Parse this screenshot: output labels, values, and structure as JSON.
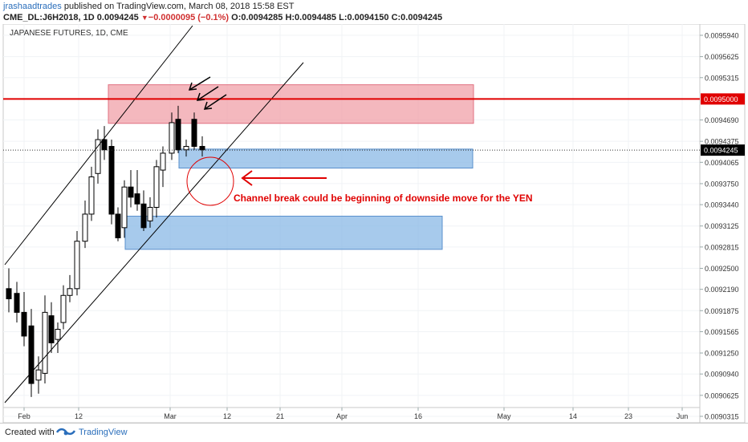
{
  "header": {
    "author": "jrashaadtrades",
    "published": "published on TradingView.com, March 08, 2018 15:58 EST",
    "symbol": "CME_DL:J6H2018, 1D",
    "last": "0.0094245",
    "change": "−0.0000095 (−0.1%)",
    "o_label": "O:",
    "o_val": "0.0094285",
    "h_label": "H:",
    "h_val": "0.0094485",
    "l_label": "L:",
    "l_val": "0.0094150",
    "c_label": "C:",
    "c_val": "0.0094245"
  },
  "footer": {
    "created": "Created with",
    "brand": "TradingView"
  },
  "colors": {
    "up": "#ffffff",
    "down": "#000000",
    "resistance": "#e00000",
    "red_zone": "#f0a0a8",
    "blue_zone": "#8ab8e6",
    "annotation": "#e00000"
  },
  "chart_data": {
    "type": "candlestick",
    "title": "JAPANESE FUTURES, 1D, CME",
    "y_ticks": [
      "0.0095940",
      "0.0095625",
      "0.0095315",
      "0.0095000",
      "0.0094690",
      "0.0094375",
      "0.0094245",
      "0.0094065",
      "0.0093750",
      "0.0093440",
      "0.0093125",
      "0.0092815",
      "0.0092500",
      "0.0092190",
      "0.0091875",
      "0.0091565",
      "0.0091250",
      "0.0090940",
      "0.0090625",
      "0.0090315"
    ],
    "x_ticks": [
      "Feb",
      "12",
      "Mar",
      "12",
      "21",
      "Apr",
      "16",
      "May",
      "14",
      "23",
      "Jun"
    ],
    "ylim": [
      0.00901,
      0.009624
    ],
    "resistance_level": "0.0095000",
    "last_price_label": "0.0094245",
    "annotation": "Channel break could be beginning of downside move for the YEN",
    "candles": [
      {
        "o": 0.00922,
        "h": 0.00925,
        "l": 0.009185,
        "c": 0.009205
      },
      {
        "o": 0.009213,
        "h": 0.00923,
        "l": 0.00917,
        "c": 0.009185
      },
      {
        "o": 0.009185,
        "h": 0.009215,
        "l": 0.009135,
        "c": 0.00915
      },
      {
        "o": 0.009165,
        "h": 0.00919,
        "l": 0.00906,
        "c": 0.00908
      },
      {
        "o": 0.009085,
        "h": 0.00912,
        "l": 0.009065,
        "c": 0.0091
      },
      {
        "o": 0.009095,
        "h": 0.00921,
        "l": 0.00908,
        "c": 0.009185
      },
      {
        "o": 0.00918,
        "h": 0.0092,
        "l": 0.009125,
        "c": 0.00914
      },
      {
        "o": 0.009145,
        "h": 0.00917,
        "l": 0.009125,
        "c": 0.00916
      },
      {
        "o": 0.00917,
        "h": 0.009225,
        "l": 0.00916,
        "c": 0.00921
      },
      {
        "o": 0.00921,
        "h": 0.00924,
        "l": 0.0092,
        "c": 0.00922
      },
      {
        "o": 0.00922,
        "h": 0.009305,
        "l": 0.00921,
        "c": 0.00929
      },
      {
        "o": 0.00929,
        "h": 0.00935,
        "l": 0.00928,
        "c": 0.00933
      },
      {
        "o": 0.00933,
        "h": 0.0094,
        "l": 0.00932,
        "c": 0.009385
      },
      {
        "o": 0.00939,
        "h": 0.009455,
        "l": 0.009375,
        "c": 0.00944
      },
      {
        "o": 0.00944,
        "h": 0.00946,
        "l": 0.00941,
        "c": 0.009425
      },
      {
        "o": 0.00943,
        "h": 0.00944,
        "l": 0.009315,
        "c": 0.00933
      },
      {
        "o": 0.00933,
        "h": 0.00934,
        "l": 0.00929,
        "c": 0.009295
      },
      {
        "o": 0.00931,
        "h": 0.00938,
        "l": 0.009295,
        "c": 0.00937
      },
      {
        "o": 0.00937,
        "h": 0.009395,
        "l": 0.00934,
        "c": 0.009355
      },
      {
        "o": 0.00936,
        "h": 0.009395,
        "l": 0.009335,
        "c": 0.009345
      },
      {
        "o": 0.009345,
        "h": 0.009365,
        "l": 0.009305,
        "c": 0.00931
      },
      {
        "o": 0.00932,
        "h": 0.009355,
        "l": 0.00931,
        "c": 0.00934
      },
      {
        "o": 0.00934,
        "h": 0.00941,
        "l": 0.009325,
        "c": 0.0094
      },
      {
        "o": 0.009395,
        "h": 0.00943,
        "l": 0.00937,
        "c": 0.00942
      },
      {
        "o": 0.00942,
        "h": 0.00948,
        "l": 0.00941,
        "c": 0.009465
      },
      {
        "o": 0.00947,
        "h": 0.00949,
        "l": 0.00942,
        "c": 0.009425
      },
      {
        "o": 0.009425,
        "h": 0.00944,
        "l": 0.009415,
        "c": 0.00943
      },
      {
        "o": 0.00947,
        "h": 0.00948,
        "l": 0.009425,
        "c": 0.00943
      },
      {
        "o": 0.00943,
        "h": 0.009445,
        "l": 0.009415,
        "c": 0.009425
      }
    ]
  }
}
